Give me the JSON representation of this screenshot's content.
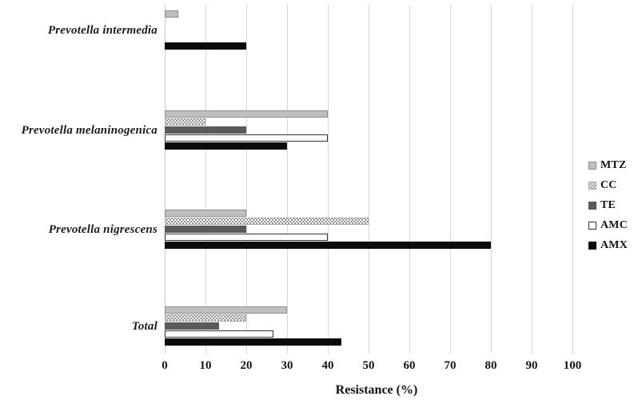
{
  "chart_data": {
    "type": "bar",
    "orientation": "horizontal",
    "title": "",
    "xlabel": "Resistance (%)",
    "ylabel": "",
    "xlim": [
      0,
      100
    ],
    "xticks": [
      0,
      10,
      20,
      30,
      40,
      50,
      60,
      70,
      80,
      90,
      100
    ],
    "grid": "vertical-gridlines",
    "legend_position": "right",
    "legend_order_top_to_bottom": [
      "MTZ",
      "CC",
      "TE",
      "AMC",
      "AMX"
    ],
    "categories": [
      "Prevotella intermedia",
      "Prevotella melaninogenica",
      "Prevotella nigrescens",
      "Total"
    ],
    "series": [
      {
        "name": "MTZ",
        "fill": "#bfbfbf",
        "pattern": "solid-light-gray",
        "values": [
          3.3,
          40,
          20,
          30
        ]
      },
      {
        "name": "CC",
        "fill": "#ffffff",
        "pattern": "dotted",
        "values": [
          0,
          10,
          50,
          20
        ]
      },
      {
        "name": "TE",
        "fill": "#5a5a5a",
        "pattern": "solid-dark-gray",
        "values": [
          0,
          20,
          20,
          13.3
        ]
      },
      {
        "name": "AMC",
        "fill": "#ffffff",
        "pattern": "white-outlined",
        "values": [
          0,
          40,
          40,
          26.7
        ]
      },
      {
        "name": "AMX",
        "fill": "#0b0b0b",
        "pattern": "solid-black",
        "values": [
          20,
          30,
          80,
          43.3
        ]
      }
    ],
    "colors": {
      "gridline": "#d6d6d6",
      "background": "#ffffff",
      "text": "#1a1a1a"
    }
  }
}
